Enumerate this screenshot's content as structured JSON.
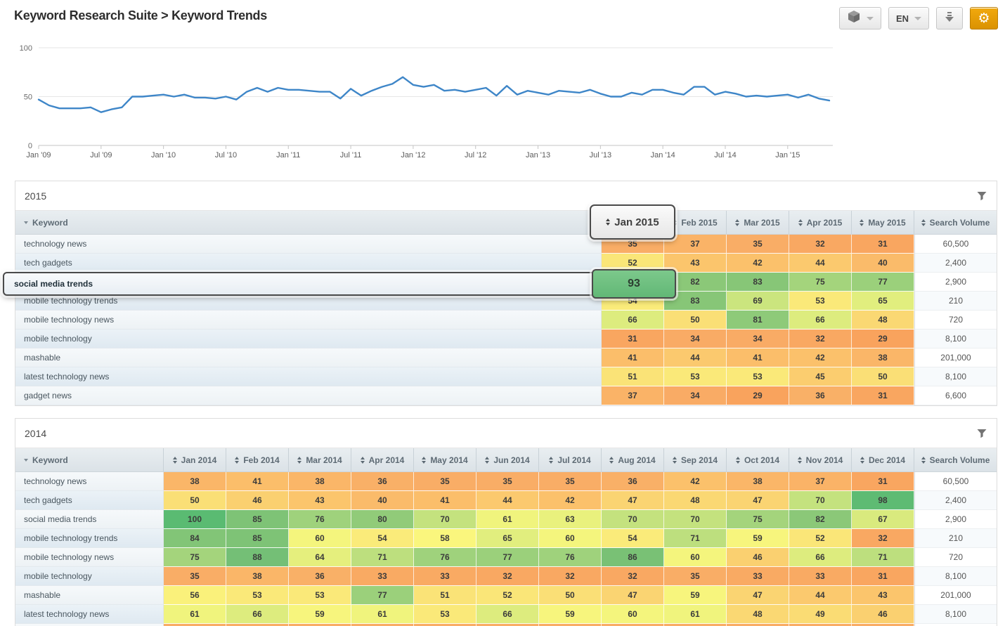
{
  "header": {
    "title": "Keyword Research Suite > Keyword Trends"
  },
  "toolbar": {
    "modules_button": {
      "icon": "cube-icon",
      "caret": true
    },
    "language_button": {
      "label": "EN",
      "caret": true
    },
    "download_button": {
      "icon": "download-icon"
    },
    "settings_button": {
      "icon": "gear-icon",
      "accent_color": "#e9a30c"
    }
  },
  "chart_data": {
    "type": "line",
    "title": "",
    "x_start": "Jan 2009",
    "x_interval": "month",
    "x_tick_labels": [
      "Jan '09",
      "Jul '09",
      "Jan '10",
      "Jul '10",
      "Jan '11",
      "Jul '11",
      "Jan '12",
      "Jul '12",
      "Jan '13",
      "Jul '13",
      "Jan '14",
      "Jul '14",
      "Jan '15"
    ],
    "x_tick_every": 6,
    "y_ticks": [
      0,
      50,
      100
    ],
    "ylim": [
      0,
      100
    ],
    "grid": true,
    "legend": "none",
    "line_color": "#3e86c8",
    "values": [
      47,
      41,
      38,
      38,
      38,
      39,
      34,
      37,
      39,
      50,
      50,
      51,
      52,
      50,
      52,
      49,
      49,
      48,
      50,
      47,
      55,
      59,
      55,
      59,
      57,
      57,
      56,
      55,
      55,
      48,
      58,
      51,
      56,
      60,
      63,
      70,
      62,
      60,
      62,
      56,
      57,
      55,
      57,
      59,
      51,
      61,
      52,
      56,
      54,
      52,
      56,
      55,
      54,
      57,
      53,
      50,
      50,
      54,
      52,
      57,
      57,
      54,
      52,
      60,
      60,
      52,
      55,
      53,
      50,
      51,
      50,
      51,
      52,
      49,
      52,
      48,
      46
    ]
  },
  "heatmap": {
    "stops": [
      {
        "v": 29,
        "color": "#f9a35d"
      },
      {
        "v": 35,
        "color": "#f9ad66"
      },
      {
        "v": 42,
        "color": "#fbc16b"
      },
      {
        "v": 48,
        "color": "#fad873"
      },
      {
        "v": 52,
        "color": "#fae678"
      },
      {
        "v": 58,
        "color": "#faf67d"
      },
      {
        "v": 62,
        "color": "#edf37d"
      },
      {
        "v": 67,
        "color": "#d9ea7e"
      },
      {
        "v": 70,
        "color": "#c4e27e"
      },
      {
        "v": 74,
        "color": "#a8d67d"
      },
      {
        "v": 78,
        "color": "#96ce7a"
      },
      {
        "v": 82,
        "color": "#8bc878"
      },
      {
        "v": 86,
        "color": "#79c175"
      },
      {
        "v": 93,
        "color": "#68bb77"
      },
      {
        "v": 100,
        "color": "#5abb72"
      }
    ]
  },
  "drag": {
    "column": "Jan 2015",
    "row": "social media trends",
    "value": "93"
  },
  "tables": [
    {
      "year": "2015",
      "keyword_header": "Keyword",
      "search_volume_header": "Search Volume",
      "months": [
        "Jan 2015",
        "Feb 2015",
        "Mar 2015",
        "Apr 2015",
        "May 2015"
      ],
      "rows": [
        {
          "keyword": "technology news",
          "values": [
            35,
            37,
            35,
            32,
            31
          ],
          "search_volume": "60,500"
        },
        {
          "keyword": "tech gadgets",
          "values": [
            52,
            43,
            42,
            44,
            40
          ],
          "search_volume": "2,400"
        },
        {
          "keyword": "social media trends",
          "values": [
            93,
            82,
            83,
            75,
            77
          ],
          "search_volume": "2,900"
        },
        {
          "keyword": "mobile technology trends",
          "values": [
            54,
            83,
            69,
            53,
            65
          ],
          "search_volume": "210"
        },
        {
          "keyword": "mobile technology news",
          "values": [
            66,
            50,
            81,
            66,
            48
          ],
          "search_volume": "720"
        },
        {
          "keyword": "mobile technology",
          "values": [
            31,
            34,
            34,
            32,
            29
          ],
          "search_volume": "8,100"
        },
        {
          "keyword": "mashable",
          "values": [
            41,
            44,
            41,
            42,
            38
          ],
          "search_volume": "201,000"
        },
        {
          "keyword": "latest technology news",
          "values": [
            51,
            53,
            53,
            45,
            50
          ],
          "search_volume": "8,100"
        },
        {
          "keyword": "gadget news",
          "values": [
            37,
            34,
            29,
            36,
            31
          ],
          "search_volume": "6,600"
        }
      ]
    },
    {
      "year": "2014",
      "keyword_header": "Keyword",
      "search_volume_header": "Search Volume",
      "months": [
        "Jan 2014",
        "Feb 2014",
        "Mar 2014",
        "Apr 2014",
        "May 2014",
        "Jun 2014",
        "Jul 2014",
        "Aug 2014",
        "Sep 2014",
        "Oct 2014",
        "Nov 2014",
        "Dec 2014"
      ],
      "rows": [
        {
          "keyword": "technology news",
          "values": [
            38,
            41,
            38,
            36,
            35,
            35,
            35,
            36,
            42,
            38,
            37,
            31
          ],
          "search_volume": "60,500"
        },
        {
          "keyword": "tech gadgets",
          "values": [
            50,
            46,
            43,
            40,
            41,
            44,
            42,
            47,
            48,
            47,
            70,
            98
          ],
          "search_volume": "2,400"
        },
        {
          "keyword": "social media trends",
          "values": [
            100,
            85,
            76,
            80,
            70,
            61,
            63,
            70,
            70,
            75,
            82,
            67
          ],
          "search_volume": "2,900"
        },
        {
          "keyword": "mobile technology trends",
          "values": [
            84,
            85,
            60,
            54,
            58,
            65,
            60,
            54,
            71,
            59,
            52,
            32
          ],
          "search_volume": "210"
        },
        {
          "keyword": "mobile technology news",
          "values": [
            75,
            88,
            64,
            71,
            76,
            77,
            76,
            86,
            60,
            46,
            66,
            71
          ],
          "search_volume": "720"
        },
        {
          "keyword": "mobile technology",
          "values": [
            35,
            38,
            36,
            33,
            33,
            32,
            32,
            32,
            35,
            33,
            33,
            31
          ],
          "search_volume": "8,100"
        },
        {
          "keyword": "mashable",
          "values": [
            56,
            53,
            53,
            77,
            51,
            52,
            50,
            47,
            59,
            47,
            44,
            43
          ],
          "search_volume": "201,000"
        },
        {
          "keyword": "latest technology news",
          "values": [
            61,
            66,
            59,
            61,
            53,
            66,
            59,
            60,
            61,
            48,
            49,
            46
          ],
          "search_volume": "8,100"
        }
      ],
      "partial_row": {
        "visible": true,
        "color": "#f9ac64"
      }
    }
  ]
}
